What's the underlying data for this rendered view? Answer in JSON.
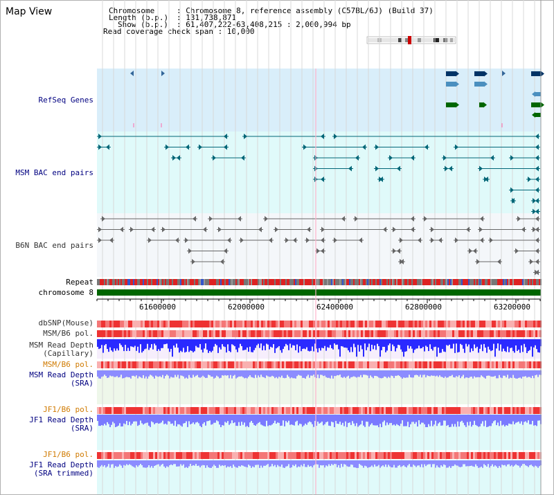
{
  "title": "Map View",
  "info": {
    "chromosome_key": "Chromosome",
    "chromosome_value": ": Chromosome 8, reference assembly (C57BL/6J) (Build 37)",
    "length_key": "Length (b.p.)",
    "length_value": ": 131,738,871",
    "show_key": "Show (b.p.)",
    "show_value": ": 61,407,222-63,408,215 : 2,000,994 bp",
    "read_coverage": "Read coverage check span : 10,000"
  },
  "tracks": {
    "refseq": "RefSeq Genes",
    "msm_bac": "MSM BAC end pairs",
    "b6n_bac": "B6N BAC end pairs",
    "repeat": "Repeat",
    "chromosome": "chromosome 8",
    "dbsnp": "dbSNP(Mouse)",
    "msm_b6_pol_1": "MSM/B6 pol.",
    "msm_read_depth_cap_1": "MSM Read Depth",
    "msm_read_depth_cap_2": "(Capillary)",
    "msm_b6_pol_2": "MSM/B6 pol.",
    "msm_read_depth_sra_1": "MSM Read Depth",
    "msm_read_depth_sra_2": "(SRA)",
    "jf1_b6_pol_1": "JF1/B6 pol.",
    "jf1_read_depth_sra_1": "JF1 Read Depth",
    "jf1_read_depth_sra_2": "(SRA)",
    "jf1_b6_pol_2": "JF1/B6 pol.",
    "jf1_read_depth_trim_1": "JF1 Read Depth",
    "jf1_read_depth_trim_2": "(SRA trimmed)"
  },
  "axis": {
    "ticks": [
      "61600000",
      "62000000",
      "62400000",
      "62800000",
      "63200000"
    ]
  },
  "colors": {
    "refseq_bg": "#d9eefa",
    "bac_bg": "#e0fafa",
    "b6n_bg": "#f4f7fa",
    "chromosome_bar": "#006600",
    "gene_dark": "#003366",
    "gene_mid": "#4a8fbf",
    "gene_green": "#006600",
    "msm_bac": "#006677",
    "b6n_bac": "#666666",
    "depth_blue": "#3333ff",
    "depth_light": "#8888ff",
    "pol_red": "#ee3333",
    "label_orange": "#d07a00",
    "label_navy": "#000080"
  }
}
